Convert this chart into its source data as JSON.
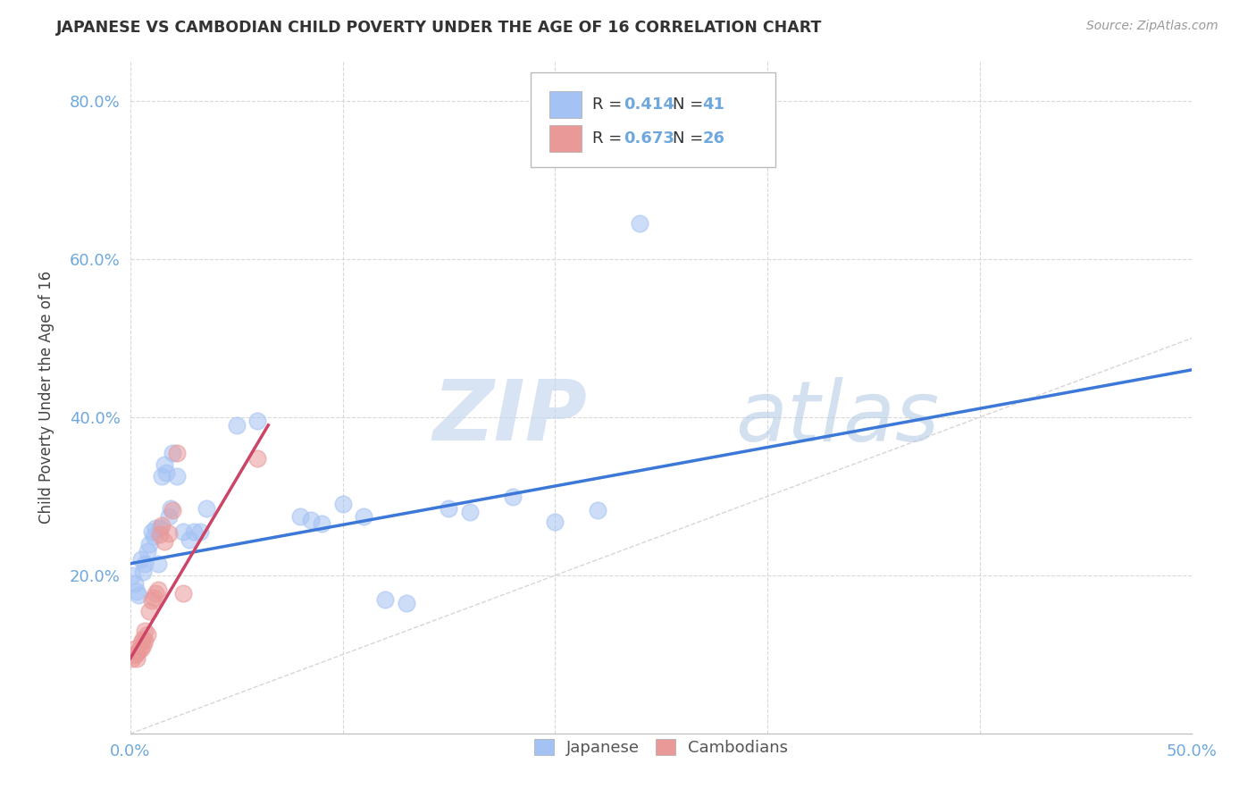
{
  "title": "JAPANESE VS CAMBODIAN CHILD POVERTY UNDER THE AGE OF 16 CORRELATION CHART",
  "source": "Source: ZipAtlas.com",
  "ylabel_label": "Child Poverty Under the Age of 16",
  "xlim": [
    0.0,
    0.5
  ],
  "ylim": [
    0.0,
    0.85
  ],
  "xticks": [
    0.0,
    0.1,
    0.2,
    0.3,
    0.4,
    0.5
  ],
  "yticks": [
    0.0,
    0.2,
    0.4,
    0.6,
    0.8
  ],
  "xtick_labels": [
    "0.0%",
    "",
    "",
    "",
    "",
    "50.0%"
  ],
  "ytick_labels": [
    "",
    "20.0%",
    "40.0%",
    "60.0%",
    "80.0%"
  ],
  "background_color": "#ffffff",
  "grid_color": "#d8d8d8",
  "japanese_color": "#a4c2f4",
  "cambodian_color": "#ea9999",
  "japanese_line_color": "#3c78d8",
  "cambodian_line_color": "#cc4466",
  "diagonal_color": "#cccccc",
  "tick_color": "#6fa8dc",
  "r_japanese": 0.414,
  "n_japanese": 41,
  "r_cambodian": 0.673,
  "n_cambodian": 26,
  "watermark_zip": "ZIP",
  "watermark_atlas": "atlas",
  "japanese_points": [
    [
      0.001,
      0.2
    ],
    [
      0.002,
      0.19
    ],
    [
      0.003,
      0.18
    ],
    [
      0.004,
      0.175
    ],
    [
      0.005,
      0.22
    ],
    [
      0.006,
      0.205
    ],
    [
      0.007,
      0.215
    ],
    [
      0.008,
      0.23
    ],
    [
      0.009,
      0.24
    ],
    [
      0.01,
      0.255
    ],
    [
      0.011,
      0.25
    ],
    [
      0.012,
      0.26
    ],
    [
      0.013,
      0.215
    ],
    [
      0.014,
      0.26
    ],
    [
      0.015,
      0.325
    ],
    [
      0.016,
      0.34
    ],
    [
      0.017,
      0.33
    ],
    [
      0.018,
      0.275
    ],
    [
      0.019,
      0.285
    ],
    [
      0.02,
      0.355
    ],
    [
      0.022,
      0.325
    ],
    [
      0.025,
      0.255
    ],
    [
      0.028,
      0.245
    ],
    [
      0.03,
      0.255
    ],
    [
      0.033,
      0.255
    ],
    [
      0.036,
      0.285
    ],
    [
      0.05,
      0.39
    ],
    [
      0.06,
      0.395
    ],
    [
      0.08,
      0.275
    ],
    [
      0.085,
      0.27
    ],
    [
      0.09,
      0.265
    ],
    [
      0.1,
      0.29
    ],
    [
      0.11,
      0.275
    ],
    [
      0.12,
      0.17
    ],
    [
      0.13,
      0.165
    ],
    [
      0.15,
      0.285
    ],
    [
      0.16,
      0.28
    ],
    [
      0.18,
      0.3
    ],
    [
      0.2,
      0.268
    ],
    [
      0.22,
      0.283
    ],
    [
      0.24,
      0.645
    ]
  ],
  "cambodian_points": [
    [
      0.001,
      0.095
    ],
    [
      0.002,
      0.1
    ],
    [
      0.002,
      0.107
    ],
    [
      0.003,
      0.102
    ],
    [
      0.003,
      0.095
    ],
    [
      0.004,
      0.105
    ],
    [
      0.005,
      0.108
    ],
    [
      0.005,
      0.115
    ],
    [
      0.006,
      0.112
    ],
    [
      0.006,
      0.12
    ],
    [
      0.007,
      0.118
    ],
    [
      0.007,
      0.13
    ],
    [
      0.008,
      0.125
    ],
    [
      0.009,
      0.155
    ],
    [
      0.01,
      0.168
    ],
    [
      0.011,
      0.172
    ],
    [
      0.012,
      0.178
    ],
    [
      0.013,
      0.182
    ],
    [
      0.014,
      0.252
    ],
    [
      0.015,
      0.263
    ],
    [
      0.016,
      0.243
    ],
    [
      0.018,
      0.253
    ],
    [
      0.02,
      0.283
    ],
    [
      0.022,
      0.355
    ],
    [
      0.025,
      0.178
    ],
    [
      0.06,
      0.348
    ]
  ],
  "japanese_line": [
    [
      0.0,
      0.215
    ],
    [
      0.5,
      0.46
    ]
  ],
  "cambodian_line": [
    [
      0.0,
      0.095
    ],
    [
      0.065,
      0.39
    ]
  ],
  "diagonal_line": [
    [
      0.0,
      0.0
    ],
    [
      0.5,
      0.5
    ]
  ]
}
